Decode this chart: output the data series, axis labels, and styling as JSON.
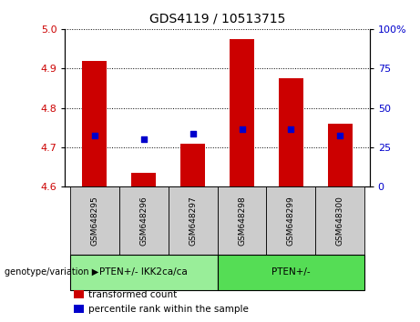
{
  "title": "GDS4119 / 10513715",
  "samples": [
    "GSM648295",
    "GSM648296",
    "GSM648297",
    "GSM648298",
    "GSM648299",
    "GSM648300"
  ],
  "bar_bottoms": [
    4.6,
    4.6,
    4.6,
    4.6,
    4.6,
    4.6
  ],
  "bar_tops": [
    4.92,
    4.635,
    4.71,
    4.975,
    4.875,
    4.76
  ],
  "blue_dots": [
    4.73,
    4.72,
    4.735,
    4.745,
    4.745,
    4.73
  ],
  "ylim": [
    4.6,
    5.0
  ],
  "yticks_left": [
    4.6,
    4.7,
    4.8,
    4.9,
    5.0
  ],
  "yticks_right": [
    0,
    25,
    50,
    75,
    100
  ],
  "ytick_right_labels": [
    "0",
    "25",
    "50",
    "75",
    "100%"
  ],
  "bar_color": "#cc0000",
  "dot_color": "#0000cc",
  "groups": [
    {
      "label": "PTEN+/- IKK2ca/ca",
      "indices": [
        0,
        1,
        2
      ],
      "color": "#99ee99"
    },
    {
      "label": "PTEN+/-",
      "indices": [
        3,
        4,
        5
      ],
      "color": "#55dd55"
    }
  ],
  "genotype_label": "genotype/variation",
  "legend_items": [
    {
      "label": "transformed count",
      "color": "#cc0000"
    },
    {
      "label": "percentile rank within the sample",
      "color": "#0000cc"
    }
  ],
  "bar_width": 0.5,
  "left_tick_color": "#cc0000",
  "right_tick_color": "#0000cc",
  "sample_box_color": "#cccccc",
  "title_fontsize": 10,
  "tick_fontsize": 8,
  "label_fontsize": 7.5,
  "legend_fontsize": 7.5
}
